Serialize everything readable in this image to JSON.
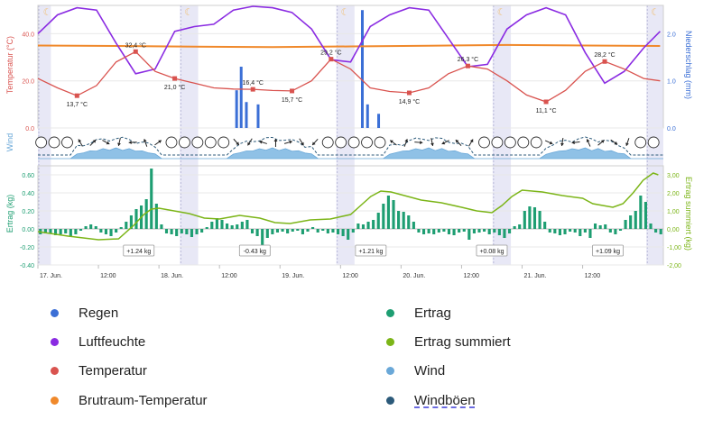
{
  "chart_data": [
    {
      "type": "line",
      "panel": "weather",
      "ylabel_left": "Temperatur (°C)",
      "ylabel_right": "Niederschlag (mm)",
      "y_ticks_left": [
        "0.0",
        "20.0",
        "40.0"
      ],
      "y_ticks_right": [
        "0.0",
        "1.0",
        "2.0"
      ],
      "ylim_left": [
        0,
        52
      ],
      "ylim_right": [
        0,
        2.6
      ],
      "series": [
        {
          "name": "Temperatur",
          "color": "#d9534f",
          "x": [
            0,
            3,
            6,
            9,
            12,
            15,
            18,
            21,
            24,
            27,
            30,
            33,
            36,
            39,
            42,
            45,
            48,
            51,
            54,
            57,
            60,
            63,
            66,
            69,
            72,
            75,
            78,
            81,
            84,
            87,
            90,
            93,
            95.5
          ],
          "y": [
            21,
            17,
            13.7,
            18,
            28,
            32.4,
            24,
            21,
            19,
            17,
            16.5,
            16.4,
            15.9,
            15.7,
            20,
            29.2,
            25,
            17,
            15.5,
            14.9,
            17,
            23,
            26.3,
            25,
            20,
            14,
            11.1,
            16,
            24,
            28.2,
            25,
            21,
            20
          ]
        },
        {
          "name": "Luftfeuchte",
          "color": "#8a2be2",
          "axis": "right",
          "x": [
            0,
            3,
            6,
            9,
            12,
            15,
            18,
            21,
            24,
            27,
            30,
            33,
            36,
            39,
            42,
            45,
            48,
            51,
            54,
            57,
            60,
            63,
            66,
            69,
            72,
            75,
            78,
            81,
            84,
            87,
            90,
            93,
            95.5
          ],
          "y": [
            2.0,
            2.4,
            2.55,
            2.5,
            1.8,
            1.15,
            1.25,
            2.05,
            2.15,
            2.2,
            2.5,
            2.58,
            2.55,
            2.45,
            2.1,
            1.45,
            1.4,
            2.15,
            2.4,
            2.55,
            2.5,
            1.9,
            1.3,
            1.35,
            2.1,
            2.4,
            2.55,
            2.4,
            1.6,
            0.95,
            1.2,
            1.7,
            2.05
          ]
        },
        {
          "name": "Brutraum-Temperatur",
          "color": "#f0892b",
          "x": [
            0,
            12,
            24,
            36,
            48,
            60,
            72,
            84,
            95.5
          ],
          "y": [
            35,
            34.8,
            34.5,
            34.3,
            34.6,
            34.9,
            35.2,
            35.0,
            34.8
          ]
        }
      ],
      "rain": {
        "name": "Regen",
        "color": "#3b6fd6",
        "x": [
          30.5,
          31.2,
          32.0,
          33.8,
          49.8,
          50.6,
          52.3
        ],
        "values": [
          0.8,
          1.3,
          0.55,
          0.5,
          2.5,
          0.5,
          0.3
        ]
      },
      "point_labels": [
        {
          "x": 6,
          "y": 13.7,
          "text": "13,7 °C"
        },
        {
          "x": 15,
          "y": 32.4,
          "text": "32,4 °C"
        },
        {
          "x": 21,
          "y": 21,
          "text": "21,0 °C"
        },
        {
          "x": 33,
          "y": 16.4,
          "text": "16,4 °C"
        },
        {
          "x": 39,
          "y": 15.7,
          "text": "15,7 °C"
        },
        {
          "x": 45,
          "y": 29.2,
          "text": "29,2 °C"
        },
        {
          "x": 57,
          "y": 14.9,
          "text": "14,9 °C"
        },
        {
          "x": 66,
          "y": 26.3,
          "text": "26,3 °C"
        },
        {
          "x": 78,
          "y": 11.1,
          "text": "11,1 °C"
        },
        {
          "x": 87,
          "y": 28.2,
          "text": "28,2 °C"
        }
      ]
    },
    {
      "type": "area",
      "panel": "wind",
      "ylabel": "Wind",
      "series": [
        {
          "name": "Wind",
          "color": "#8fc1e6"
        },
        {
          "name": "Windböen",
          "color": "#2c5a7a"
        }
      ]
    },
    {
      "type": "bar",
      "panel": "yield",
      "ylabel_left": "Ertrag (kg)",
      "ylabel_right": "Ertrag summiert (kg)",
      "y_ticks_left": [
        "-0.40",
        "-0.20",
        "0.00",
        "0.20",
        "0.40",
        "0.60"
      ],
      "y_ticks_right": [
        "-2,00",
        "-1,00",
        "0,00",
        "1,00",
        "2,00",
        "3,00"
      ],
      "ylim_left": [
        -0.4,
        0.7
      ],
      "ylim_right": [
        -2,
        3.5
      ],
      "x_tick_labels": [
        {
          "x": 0,
          "text": "17. Jun."
        },
        {
          "x": 12,
          "text": "12:00"
        },
        {
          "x": 24,
          "text": "18. Jun."
        },
        {
          "x": 36,
          "text": "12:00"
        },
        {
          "x": 48,
          "text": "19. Jun."
        },
        {
          "x": 60,
          "text": "12:00"
        },
        {
          "x": 72,
          "text": "20. Jun."
        },
        {
          "x": 84,
          "text": "12:00"
        },
        {
          "x": 96,
          "text": "21. Jun."
        },
        {
          "x": 108,
          "text": "12:00"
        }
      ],
      "series": [
        {
          "name": "Ertrag",
          "color": "#1e9e72",
          "values": [
            -0.06,
            -0.05,
            -0.05,
            -0.07,
            -0.06,
            -0.05,
            -0.08,
            -0.06,
            -0.02,
            0.03,
            0.05,
            0.03,
            -0.04,
            -0.06,
            -0.08,
            -0.04,
            0.02,
            0.08,
            0.15,
            0.22,
            0.26,
            0.33,
            0.67,
            0.28,
            0.05,
            -0.05,
            -0.06,
            -0.08,
            -0.05,
            -0.06,
            -0.09,
            -0.06,
            -0.04,
            0.02,
            0.08,
            0.12,
            0.1,
            0.06,
            0.04,
            0.05,
            0.08,
            0.1,
            -0.05,
            -0.08,
            -0.25,
            -0.1,
            -0.06,
            -0.04,
            -0.03,
            -0.05,
            -0.03,
            -0.02,
            -0.06,
            -0.03,
            0.02,
            -0.04,
            -0.02,
            -0.05,
            -0.04,
            -0.06,
            -0.08,
            -0.12,
            -0.04,
            0.06,
            0.05,
            0.08,
            0.1,
            0.18,
            0.28,
            0.37,
            0.32,
            0.2,
            0.19,
            0.15,
            0.08,
            -0.04,
            -0.06,
            -0.05,
            -0.06,
            -0.04,
            -0.03,
            -0.06,
            -0.07,
            -0.04,
            -0.03,
            -0.12,
            -0.05,
            -0.04,
            -0.03,
            -0.06,
            -0.04,
            -0.07,
            -0.1,
            -0.05,
            0.03,
            0.05,
            0.2,
            0.25,
            0.24,
            0.2,
            0.08,
            -0.04,
            -0.05,
            -0.07,
            -0.06,
            -0.03,
            -0.04,
            -0.08,
            -0.04,
            -0.1,
            0.06,
            0.04,
            0.05,
            -0.04,
            -0.06,
            -0.02,
            0.1,
            0.15,
            0.2,
            0.37,
            0.3,
            0.06,
            -0.04,
            -0.06
          ]
        },
        {
          "name": "Ertrag summiert",
          "color": "#7cb518",
          "axis": "right",
          "x": [
            0,
            6,
            12,
            16,
            19,
            21,
            22.5,
            24,
            27,
            30,
            33,
            36,
            40,
            44,
            47,
            50,
            54,
            58,
            62,
            64,
            66,
            68,
            70,
            72,
            74,
            76,
            80,
            84,
            87,
            90,
            92,
            94,
            96,
            100,
            104,
            108,
            110,
            112,
            114,
            116,
            118,
            120,
            122,
            123
          ],
          "y": [
            -0.15,
            -0.4,
            -0.6,
            -0.55,
            0.2,
            0.8,
            1.1,
            1.15,
            1.0,
            0.85,
            0.6,
            0.55,
            0.75,
            0.6,
            0.35,
            0.3,
            0.5,
            0.55,
            0.8,
            1.3,
            1.8,
            2.1,
            2.05,
            1.9,
            1.75,
            1.6,
            1.45,
            1.2,
            1.0,
            0.9,
            1.3,
            1.8,
            2.15,
            2.05,
            1.85,
            1.7,
            1.4,
            1.3,
            1.2,
            1.4,
            2.0,
            2.7,
            3.1,
            3.0
          ]
        }
      ],
      "daily_totals": [
        {
          "x": 20,
          "text": "+1.24 kg"
        },
        {
          "x": 43,
          "text": "-0.43 kg"
        },
        {
          "x": 66,
          "text": "+1.21 kg"
        },
        {
          "x": 90,
          "text": "+0.08 kg"
        },
        {
          "x": 113,
          "text": "+1.09 kg"
        }
      ]
    }
  ],
  "legend": {
    "items": [
      {
        "label": "Regen",
        "color": "#3b6fd6"
      },
      {
        "label": "Luftfeuchte",
        "color": "#8a2be2"
      },
      {
        "label": "Temperatur",
        "color": "#d9534f"
      },
      {
        "label": "Brutraum-Temperatur",
        "color": "#f0892b"
      },
      {
        "label": "Ertrag",
        "color": "#1e9e72"
      },
      {
        "label": "Ertrag summiert",
        "color": "#7cb518"
      },
      {
        "label": "Wind",
        "color": "#6aa8d8"
      },
      {
        "label": "Windböen",
        "color": "#2c5a7a"
      }
    ]
  },
  "colors": {
    "night_band": "#e4e4f5",
    "grid": "#e8e8e8",
    "moon": "#f0c27a"
  }
}
